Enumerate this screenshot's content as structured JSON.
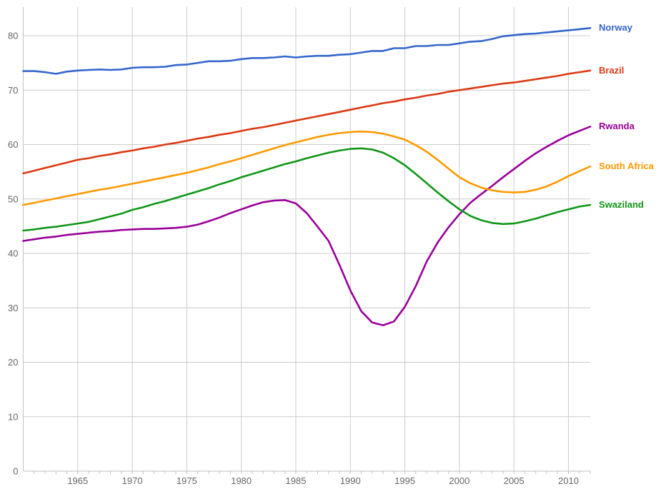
{
  "chart_data": {
    "type": "line",
    "xlabel": "",
    "ylabel": "",
    "xlim": [
      1960,
      2012
    ],
    "ylim": [
      0,
      85
    ],
    "grid": true,
    "legend_position": "right-of-line-ends",
    "x_tick_values": [
      1965,
      1970,
      1975,
      1980,
      1985,
      1990,
      1995,
      2000,
      2005,
      2010
    ],
    "x_tick_labels": [
      "1965",
      "1970",
      "1975",
      "1980",
      "1985",
      "1990",
      "1995",
      "2000",
      "2005",
      "2010"
    ],
    "x_minor_ticks_every": 1,
    "y_tick_values": [
      0,
      10,
      20,
      30,
      40,
      50,
      60,
      70,
      80
    ],
    "y_tick_labels": [
      "0",
      "10",
      "20",
      "30",
      "40",
      "50",
      "60",
      "70",
      "80"
    ],
    "colors": {
      "grid": "#cccccc",
      "axis": "#c2c2c2",
      "tick_label": "#666666",
      "background": "#ffffff"
    },
    "x": [
      1960,
      1961,
      1962,
      1963,
      1964,
      1965,
      1966,
      1967,
      1968,
      1969,
      1970,
      1971,
      1972,
      1973,
      1974,
      1975,
      1976,
      1977,
      1978,
      1979,
      1980,
      1981,
      1982,
      1983,
      1984,
      1985,
      1986,
      1987,
      1988,
      1989,
      1990,
      1991,
      1992,
      1993,
      1994,
      1995,
      1996,
      1997,
      1998,
      1999,
      2000,
      2001,
      2002,
      2003,
      2004,
      2005,
      2006,
      2007,
      2008,
      2009,
      2010,
      2011,
      2012
    ],
    "series": [
      {
        "name": "Norway",
        "color": "#3366cc",
        "values": [
          73.5,
          73.5,
          73.3,
          73.0,
          73.4,
          73.6,
          73.7,
          73.8,
          73.7,
          73.8,
          74.1,
          74.2,
          74.2,
          74.3,
          74.6,
          74.7,
          75.0,
          75.3,
          75.3,
          75.4,
          75.7,
          75.9,
          75.9,
          76.0,
          76.2,
          76.0,
          76.2,
          76.3,
          76.3,
          76.5,
          76.6,
          76.9,
          77.2,
          77.2,
          77.7,
          77.7,
          78.1,
          78.1,
          78.3,
          78.3,
          78.6,
          78.9,
          79.0,
          79.4,
          79.9,
          80.1,
          80.3,
          80.4,
          80.6,
          80.8,
          81.0,
          81.2,
          81.4
        ]
      },
      {
        "name": "Brazil",
        "color": "#dc3912",
        "values": [
          54.7,
          55.2,
          55.7,
          56.2,
          56.7,
          57.2,
          57.5,
          57.9,
          58.2,
          58.6,
          58.9,
          59.3,
          59.6,
          60.0,
          60.3,
          60.7,
          61.1,
          61.4,
          61.8,
          62.1,
          62.5,
          62.9,
          63.2,
          63.6,
          64.0,
          64.4,
          64.8,
          65.2,
          65.6,
          66.0,
          66.4,
          66.8,
          67.2,
          67.6,
          67.9,
          68.3,
          68.6,
          69.0,
          69.3,
          69.7,
          70.0,
          70.3,
          70.6,
          70.9,
          71.2,
          71.4,
          71.7,
          72.0,
          72.3,
          72.6,
          73.0,
          73.3,
          73.6
        ]
      },
      {
        "name": "Rwanda",
        "color": "#990099",
        "values": [
          42.3,
          42.6,
          42.9,
          43.1,
          43.4,
          43.6,
          43.8,
          44.0,
          44.1,
          44.3,
          44.4,
          44.5,
          44.5,
          44.6,
          44.7,
          44.9,
          45.3,
          45.9,
          46.6,
          47.4,
          48.1,
          48.8,
          49.4,
          49.7,
          49.8,
          49.2,
          47.4,
          44.9,
          42.3,
          37.9,
          33.2,
          29.4,
          27.3,
          26.8,
          27.5,
          30.2,
          34.0,
          38.5,
          42.0,
          44.8,
          47.2,
          49.3,
          50.9,
          52.4,
          54.0,
          55.5,
          57.0,
          58.4,
          59.6,
          60.7,
          61.7,
          62.5,
          63.3
        ]
      },
      {
        "name": "South Africa",
        "color": "#ff9900",
        "values": [
          48.9,
          49.3,
          49.7,
          50.1,
          50.5,
          50.9,
          51.3,
          51.7,
          52.0,
          52.4,
          52.8,
          53.2,
          53.6,
          54.0,
          54.4,
          54.8,
          55.3,
          55.8,
          56.4,
          56.9,
          57.5,
          58.1,
          58.7,
          59.3,
          59.9,
          60.4,
          60.9,
          61.4,
          61.8,
          62.1,
          62.3,
          62.4,
          62.3,
          62.0,
          61.5,
          60.9,
          59.9,
          58.7,
          57.2,
          55.6,
          54.0,
          52.9,
          52.1,
          51.6,
          51.3,
          51.2,
          51.3,
          51.7,
          52.3,
          53.2,
          54.2,
          55.1,
          56.0
        ]
      },
      {
        "name": "Swaziland",
        "color": "#109618",
        "values": [
          44.2,
          44.4,
          44.7,
          44.9,
          45.2,
          45.5,
          45.8,
          46.3,
          46.8,
          47.3,
          48.0,
          48.5,
          49.1,
          49.6,
          50.2,
          50.8,
          51.4,
          52.0,
          52.7,
          53.3,
          54.0,
          54.6,
          55.2,
          55.8,
          56.4,
          56.9,
          57.5,
          58.0,
          58.5,
          58.9,
          59.2,
          59.3,
          59.1,
          58.5,
          57.5,
          56.2,
          54.6,
          52.9,
          51.2,
          49.6,
          48.1,
          46.9,
          46.1,
          45.6,
          45.4,
          45.5,
          45.9,
          46.4,
          47.0,
          47.6,
          48.1,
          48.6,
          48.9
        ]
      }
    ]
  }
}
